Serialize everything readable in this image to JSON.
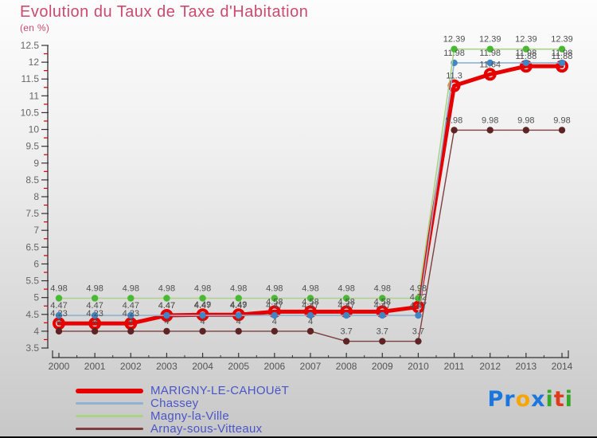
{
  "title": "Evolution du Taux de Taxe d'Habitation",
  "subtitle": "(en %)",
  "chart_data": {
    "type": "line",
    "x": [
      2000,
      2001,
      2002,
      2003,
      2004,
      2005,
      2006,
      2007,
      2008,
      2009,
      2010,
      2011,
      2012,
      2013,
      2014
    ],
    "ylim": [
      3.5,
      12.5
    ],
    "ytick_step": 0.5,
    "ytick_minor_step": 0.25,
    "grid": false,
    "legend_position": "bottom-left",
    "point_labels": true,
    "colors_note": {
      "axis": "#333333",
      "minor_tick": "#cc0000",
      "tick_label": "#666666",
      "point_label": "#4f4f4f"
    },
    "series": [
      {
        "name": "MARIGNY-LE-CAHOUëT",
        "line_color": "#e60000",
        "dot_color": "#e60000",
        "line_width": 5,
        "marker": "ring",
        "values": [
          4.23,
          4.23,
          4.23,
          4.47,
          4.49,
          4.49,
          4.58,
          4.58,
          4.58,
          4.58,
          4.72,
          11.3,
          11.64,
          11.88,
          11.88
        ]
      },
      {
        "name": "Chassey",
        "line_color": "#8fb2d0",
        "dot_color": "#3f86c4",
        "line_width": 1.6,
        "marker": "dot",
        "values": [
          4.47,
          4.47,
          4.47,
          4.47,
          4.47,
          4.47,
          4.47,
          4.47,
          4.47,
          4.47,
          4.47,
          11.98,
          11.98,
          11.98,
          11.98
        ]
      },
      {
        "name": "Magny-la-Ville",
        "line_color": "#a9d487",
        "dot_color": "#49b832",
        "line_width": 1.6,
        "marker": "dot",
        "values": [
          4.98,
          4.98,
          4.98,
          4.98,
          4.98,
          4.98,
          4.98,
          4.98,
          4.98,
          4.98,
          4.98,
          12.39,
          12.39,
          12.39,
          12.39
        ]
      },
      {
        "name": "Arnay-sous-Vitteaux",
        "line_color": "#7d3f3f",
        "dot_color": "#5e2424",
        "line_width": 1.4,
        "marker": "dot",
        "values": [
          4,
          4,
          4,
          4,
          4,
          4,
          4,
          4,
          3.7,
          3.7,
          3.7,
          9.98,
          9.98,
          9.98,
          9.98
        ]
      }
    ]
  },
  "logo": {
    "text": "Proxiti",
    "letters": [
      {
        "ch": "P",
        "color": "#1b76dd"
      },
      {
        "ch": "r",
        "color": "#1b76dd"
      },
      {
        "ch": "o",
        "color": "#f7a600"
      },
      {
        "ch": "x",
        "color": "#1b76dd"
      },
      {
        "ch": "i",
        "color": "#35a829"
      },
      {
        "ch": "t",
        "color": "#e03a1e"
      },
      {
        "ch": "i",
        "color": "#35a829"
      }
    ]
  }
}
